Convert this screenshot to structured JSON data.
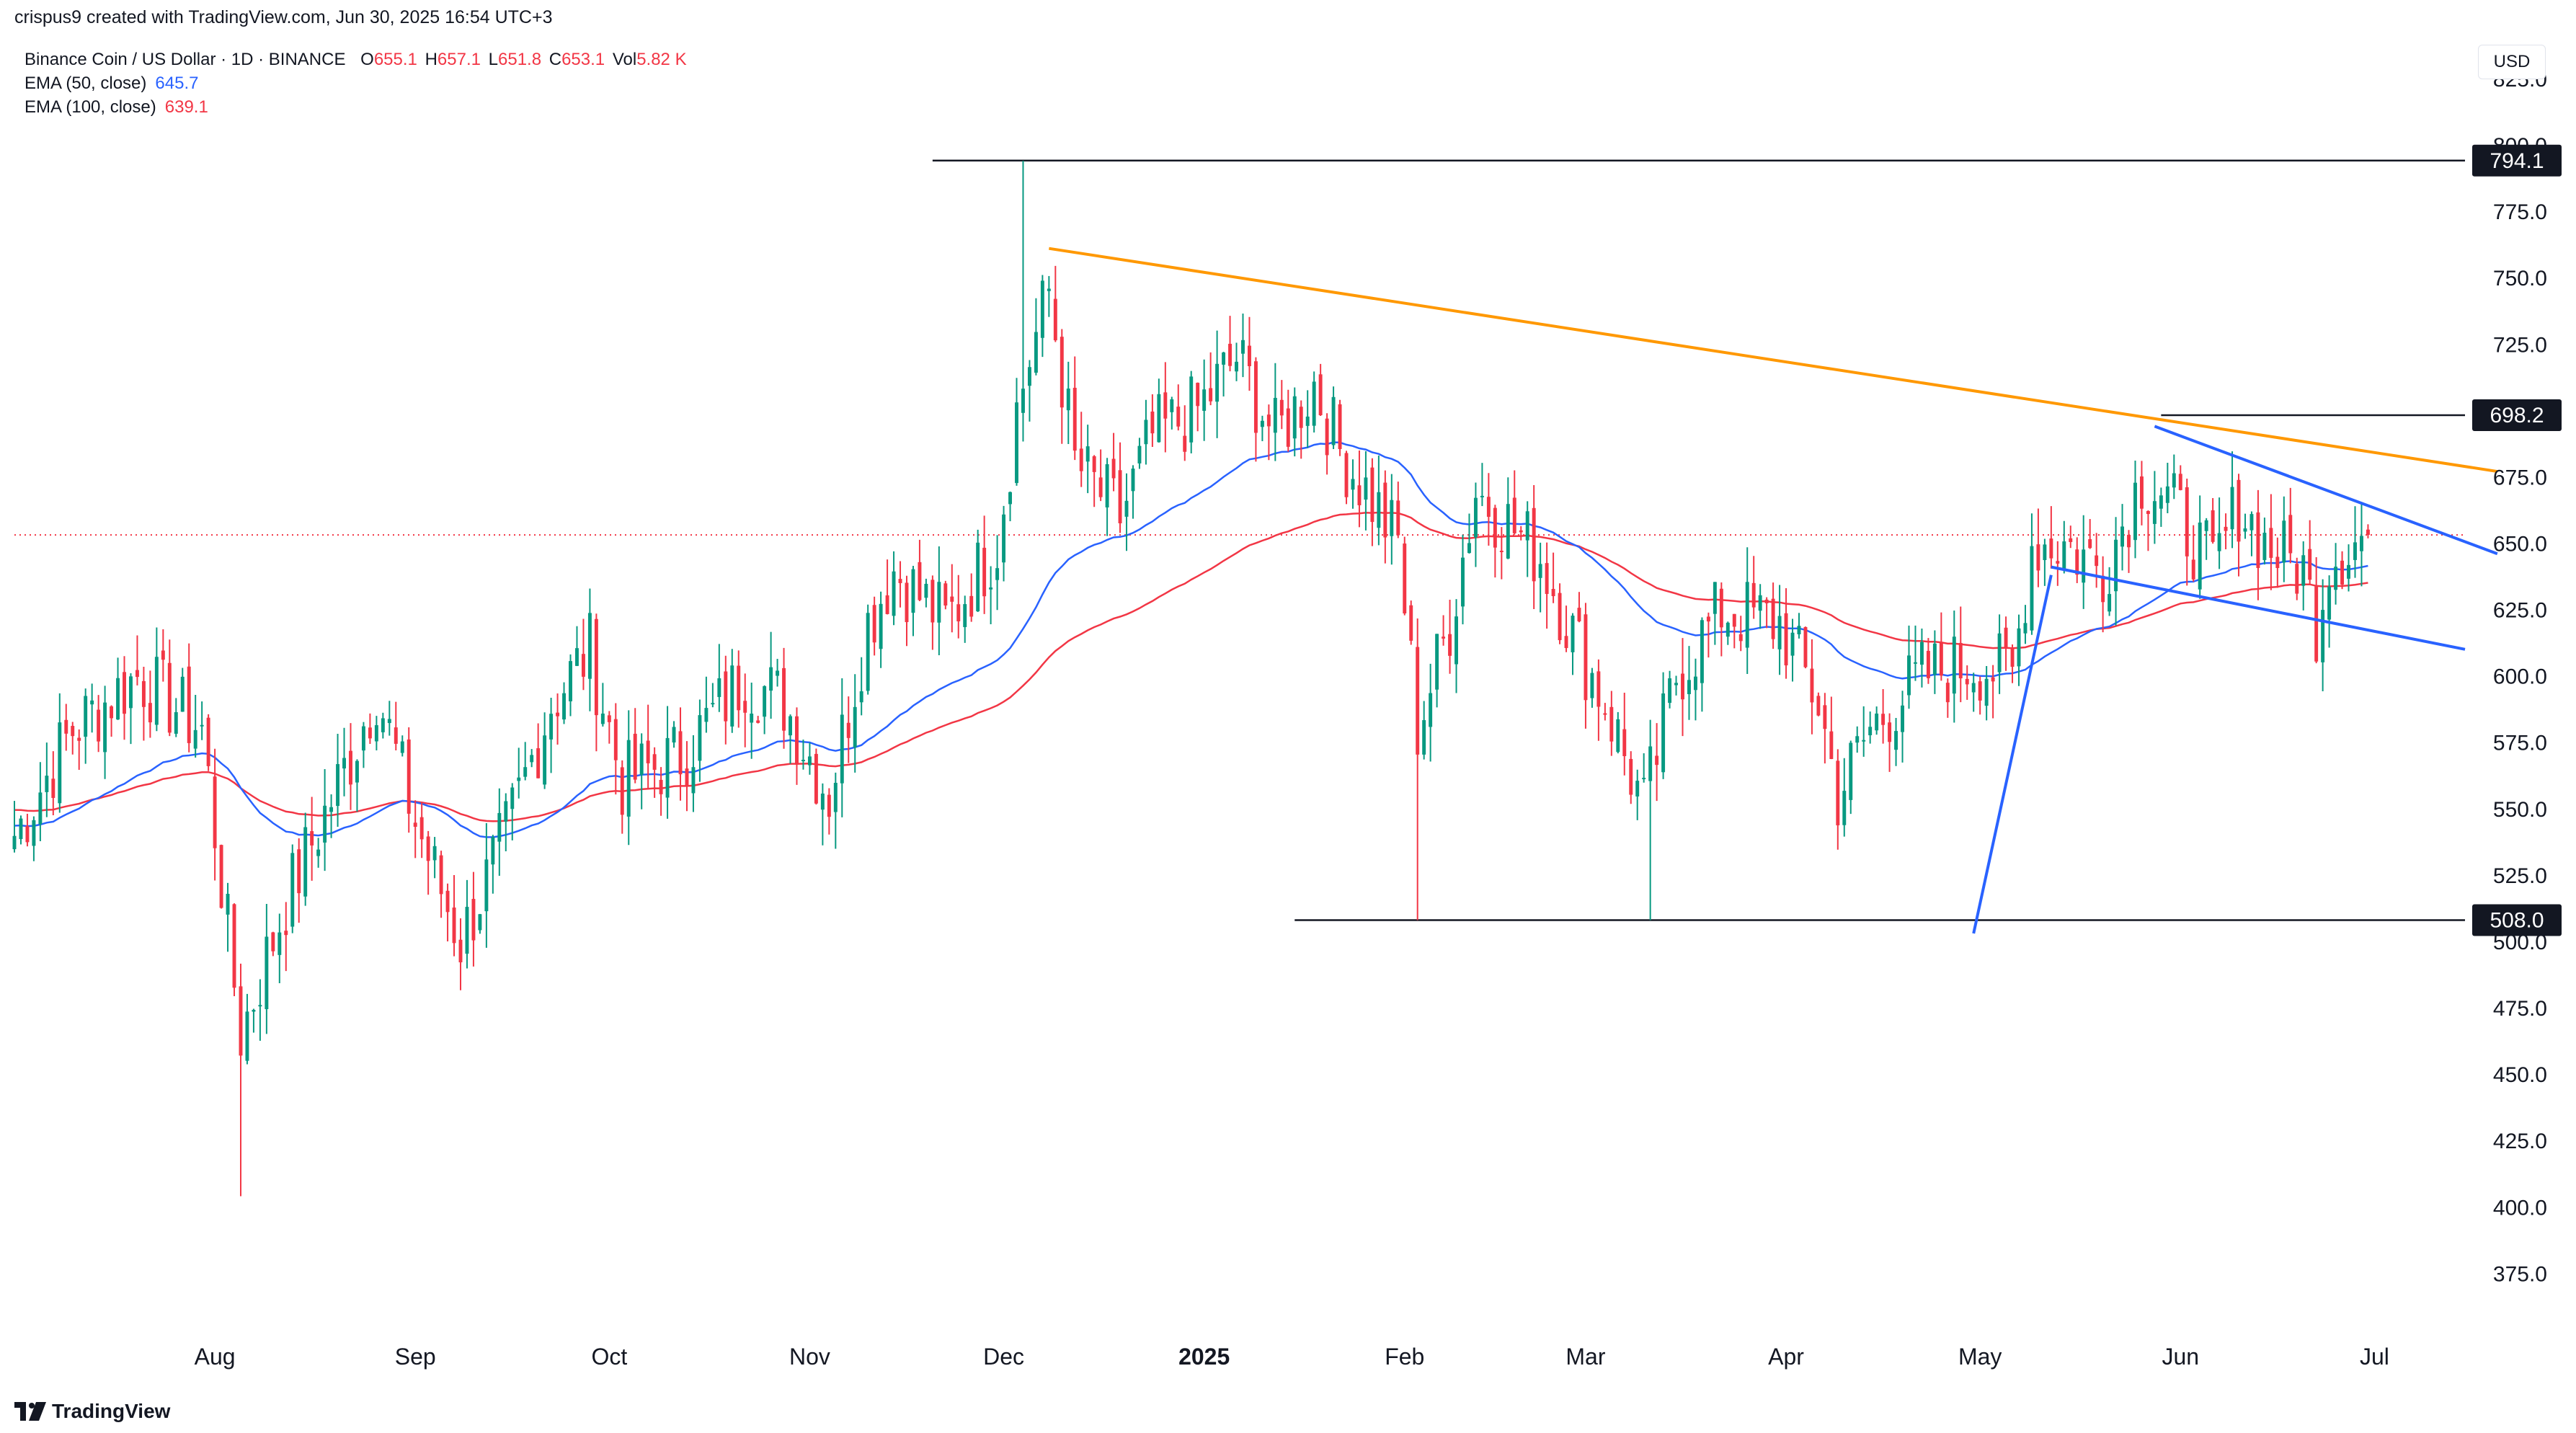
{
  "header": {
    "created_by": "crispus9 created with TradingView.com, Jun 30, 2025 16:54 UTC+3"
  },
  "legend": {
    "symbol": "Binance Coin / US Dollar · 1D · BINANCE",
    "open_label": "O",
    "open": "655.1",
    "high_label": "H",
    "high": "657.1",
    "low_label": "L",
    "low": "651.8",
    "close_label": "C",
    "close": "653.1",
    "vol_label": "Vol",
    "vol": "5.82 K",
    "ema50_label": "EMA (50, close)",
    "ema50_value": "645.7",
    "ema100_label": "EMA (100, close)",
    "ema100_value": "639.1"
  },
  "currency": "USD",
  "brand": {
    "label": "TradingView",
    "icon": "tradingview-logo-icon"
  },
  "colors": {
    "up": "#089981",
    "down": "#f23645",
    "ema50": "#2962ff",
    "ema100": "#f23645",
    "trend_orange": "#ff9800",
    "channel_blue": "#2962ff",
    "axis_text": "#131722",
    "price_line": "#f23645"
  },
  "chart_data": {
    "type": "candlestick",
    "symbol": "Binance Coin / US Dollar",
    "interval": "1D",
    "exchange": "BINANCE",
    "y_range": [
      355,
      822
    ],
    "y_ticks": [
      375,
      400,
      425,
      450,
      475,
      500,
      525,
      550,
      575,
      600,
      625,
      650,
      675,
      700,
      725,
      750,
      775,
      800,
      825
    ],
    "x_range": [
      "2024-07-01",
      "2025-07-15"
    ],
    "x_ticks": [
      {
        "date": "2024-08-01",
        "label": "Aug"
      },
      {
        "date": "2024-09-01",
        "label": "Sep"
      },
      {
        "date": "2024-10-01",
        "label": "Oct"
      },
      {
        "date": "2024-11-01",
        "label": "Nov"
      },
      {
        "date": "2024-12-01",
        "label": "Dec"
      },
      {
        "date": "2025-01-01",
        "label": "2025",
        "bold": true
      },
      {
        "date": "2025-02-01",
        "label": "Feb"
      },
      {
        "date": "2025-03-01",
        "label": "Mar"
      },
      {
        "date": "2025-04-01",
        "label": "Apr"
      },
      {
        "date": "2025-05-01",
        "label": "May"
      },
      {
        "date": "2025-06-01",
        "label": "Jun"
      },
      {
        "date": "2025-07-01",
        "label": "Jul"
      }
    ],
    "last_price": 653.1,
    "price_keypoints": [
      [
        "2024-07-01",
        540
      ],
      [
        "2024-07-10",
        580
      ],
      [
        "2024-07-20",
        600
      ],
      [
        "2024-07-30",
        580
      ],
      [
        "2024-08-05",
        465
      ],
      [
        "2024-08-12",
        515
      ],
      [
        "2024-08-22",
        570
      ],
      [
        "2024-08-26",
        595
      ],
      [
        "2024-09-01",
        545
      ],
      [
        "2024-09-08",
        500
      ],
      [
        "2024-09-15",
        540
      ],
      [
        "2024-09-22",
        590
      ],
      [
        "2024-09-28",
        610
      ],
      [
        "2024-10-03",
        560
      ],
      [
        "2024-10-12",
        570
      ],
      [
        "2024-10-22",
        600
      ],
      [
        "2024-10-28",
        590
      ],
      [
        "2024-11-04",
        555
      ],
      [
        "2024-11-10",
        620
      ],
      [
        "2024-11-14",
        640
      ],
      [
        "2024-11-22",
        620
      ],
      [
        "2024-11-30",
        650
      ],
      [
        "2024-12-03",
        700
      ],
      [
        "2024-12-05",
        720
      ],
      [
        "2024-12-08",
        745
      ],
      [
        "2024-12-12",
        680
      ],
      [
        "2024-12-19",
        660
      ],
      [
        "2024-12-24",
        690
      ],
      [
        "2024-12-31",
        700
      ],
      [
        "2025-01-06",
        720
      ],
      [
        "2025-01-12",
        690
      ],
      [
        "2025-01-18",
        710
      ],
      [
        "2025-01-22",
        685
      ],
      [
        "2025-01-26",
        670
      ],
      [
        "2025-01-31",
        650
      ],
      [
        "2025-02-03",
        580
      ],
      [
        "2025-02-08",
        620
      ],
      [
        "2025-02-12",
        670
      ],
      [
        "2025-02-16",
        660
      ],
      [
        "2025-02-22",
        645
      ],
      [
        "2025-02-28",
        610
      ],
      [
        "2025-03-04",
        590
      ],
      [
        "2025-03-10",
        550
      ],
      [
        "2025-03-15",
        600
      ],
      [
        "2025-03-22",
        625
      ],
      [
        "2025-03-31",
        620
      ],
      [
        "2025-04-06",
        590
      ],
      [
        "2025-04-09",
        555
      ],
      [
        "2025-04-14",
        580
      ],
      [
        "2025-04-22",
        600
      ],
      [
        "2025-04-30",
        605
      ],
      [
        "2025-05-06",
        600
      ],
      [
        "2025-05-09",
        650
      ],
      [
        "2025-05-14",
        650
      ],
      [
        "2025-05-20",
        640
      ],
      [
        "2025-05-26",
        675
      ],
      [
        "2025-05-29",
        670
      ],
      [
        "2025-06-02",
        655
      ],
      [
        "2025-06-06",
        640
      ],
      [
        "2025-06-10",
        665
      ],
      [
        "2025-06-14",
        650
      ],
      [
        "2025-06-20",
        640
      ],
      [
        "2025-06-22",
        620
      ],
      [
        "2025-06-24",
        645
      ],
      [
        "2025-06-30",
        653.1
      ]
    ],
    "price_levels": [
      {
        "label": "794.1",
        "value": 794.1,
        "from": "2024-11-20"
      },
      {
        "label": "698.2",
        "value": 698.2,
        "from": "2025-05-29"
      },
      {
        "label": "508.0",
        "value": 508.0,
        "from": "2025-01-15"
      }
    ],
    "trendlines": [
      {
        "name": "descending-resistance",
        "color": "orange",
        "from": [
          "2024-12-08",
          761
        ],
        "to": [
          "2025-07-20",
          677
        ]
      },
      {
        "name": "flag-upper",
        "color": "blue",
        "from": [
          "2025-05-28",
          694
        ],
        "to": [
          "2025-07-20",
          646
        ]
      },
      {
        "name": "flag-lower",
        "color": "blue",
        "from": [
          "2025-05-12",
          641
        ],
        "to": [
          "2025-07-15",
          610
        ]
      },
      {
        "name": "flagpole",
        "color": "blue",
        "from": [
          "2025-04-30",
          503
        ],
        "to": [
          "2025-05-12",
          638
        ]
      }
    ],
    "highs_lows": [
      {
        "date": "2024-08-05",
        "value": 404,
        "kind": "low"
      },
      {
        "date": "2024-12-04",
        "value": 794,
        "kind": "high"
      },
      {
        "date": "2025-02-03",
        "value": 508,
        "kind": "low"
      },
      {
        "date": "2025-03-11",
        "value": 508,
        "kind": "low"
      }
    ],
    "series": [
      {
        "name": "EMA (50, close)",
        "value": 645.7
      },
      {
        "name": "EMA (100, close)",
        "value": 639.1
      }
    ]
  }
}
